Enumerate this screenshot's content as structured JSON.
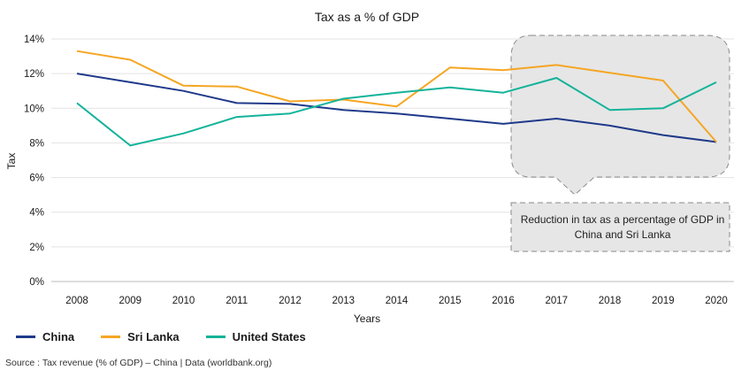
{
  "chart_data": {
    "type": "line",
    "title": "Tax as a % of GDP",
    "xlabel": "Years",
    "ylabel": "Tax",
    "ylim": [
      0,
      14
    ],
    "y_ticks": [
      "0%",
      "2%",
      "4%",
      "6%",
      "8%",
      "10%",
      "12%",
      "14%"
    ],
    "x": [
      "2008",
      "2009",
      "2010",
      "2011",
      "2012",
      "2013",
      "2014",
      "2015",
      "2016",
      "2017",
      "2018",
      "2019",
      "2020"
    ],
    "grid": "horizontal",
    "legend_position": "bottom-left",
    "series": [
      {
        "name": "China",
        "color": "#1f3a8a",
        "values": [
          12.0,
          11.5,
          11.0,
          10.3,
          10.25,
          9.9,
          9.7,
          9.4,
          9.1,
          9.4,
          9.0,
          8.45,
          8.05
        ]
      },
      {
        "name": "Sri Lanka",
        "color": "#f5a623",
        "values": [
          13.3,
          12.8,
          11.3,
          11.25,
          10.4,
          10.5,
          10.1,
          12.35,
          12.2,
          12.5,
          12.05,
          11.6,
          8.05
        ]
      },
      {
        "name": "United States",
        "color": "#14b39a",
        "values": [
          10.3,
          7.85,
          8.55,
          9.5,
          9.7,
          10.55,
          10.9,
          11.2,
          10.9,
          11.75,
          9.9,
          10.0,
          11.5
        ]
      }
    ],
    "annotation": "Reduction in tax as a percentage of GDP in China and Sri Lanka"
  },
  "source": "Source : Tax revenue (% of GDP) – China | Data (worldbank.org)"
}
